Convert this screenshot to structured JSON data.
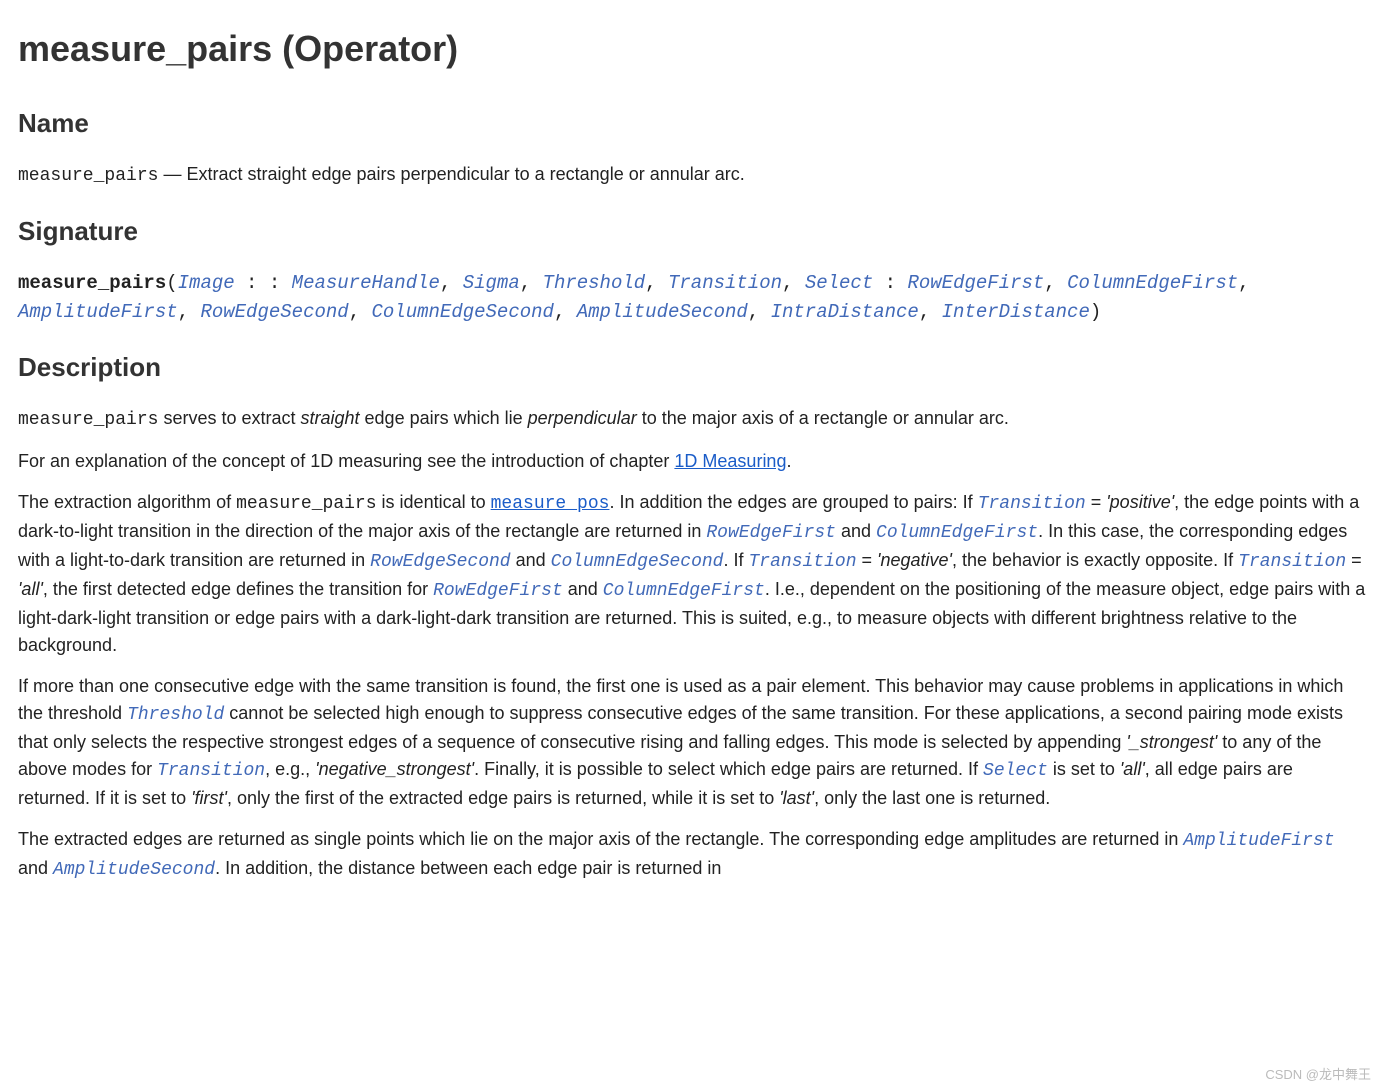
{
  "title": "measure_pairs (Operator)",
  "sections": {
    "name": "Name",
    "signature": "Signature",
    "description": "Description"
  },
  "name_line": {
    "op": "measure_pairs",
    "sep": " — ",
    "text": "Extract straight edge pairs perpendicular to a rectangle or annular arc."
  },
  "signature": {
    "op": "measure_pairs",
    "open": "(",
    "close": ")",
    "sep": ", ",
    "colon": " : ",
    "colon2": " : : ",
    "params": {
      "Image": "Image",
      "MeasureHandle": "MeasureHandle",
      "Sigma": "Sigma",
      "Threshold": "Threshold",
      "Transition": "Transition",
      "Select": "Select",
      "RowEdgeFirst": "RowEdgeFirst",
      "ColumnEdgeFirst": "ColumnEdgeFirst",
      "AmplitudeFirst": "AmplitudeFirst",
      "RowEdgeSecond": "RowEdgeSecond",
      "ColumnEdgeSecond": "ColumnEdgeSecond",
      "AmplitudeSecond": "AmplitudeSecond",
      "IntraDistance": "IntraDistance",
      "InterDistance": "InterDistance"
    }
  },
  "desc": {
    "p1": {
      "t1": " serves to extract ",
      "i1": "straight",
      "t2": " edge pairs which lie ",
      "i2": "perpendicular",
      "t3": " to the major axis of a rectangle or annular arc."
    },
    "p2": {
      "t1": "For an explanation of the concept of 1D measuring see the introduction of chapter ",
      "link": "1D Measuring",
      "t2": "."
    },
    "p3": {
      "t1": "The extraction algorithm of ",
      "mp": "measure_pairs",
      "t2": " is identical to ",
      "mpos": "measure_pos",
      "t3": ". In addition the edges are grouped to pairs: If ",
      "t4": " = ",
      "v_pos": "'positive'",
      "t5": ", the edge points with a dark-to-light transition in the direction of the major axis of the rectangle are returned in ",
      "t6": " and ",
      "t7": ". In this case, the corresponding edges with a light-to-dark transition are returned in ",
      "t8": " and ",
      "t9": ". If ",
      "t10": " = ",
      "v_neg": "'negative'",
      "t11": ", the behavior is exactly opposite. If ",
      "t12": " = ",
      "v_all": "'all'",
      "t13": ", the first detected edge defines the transition for ",
      "t14": " and ",
      "t15": ". I.e., dependent on the positioning of the measure object, edge pairs with a light-dark-light transition or edge pairs with a dark-light-dark transition are returned. This is suited, e.g., to measure objects with different brightness relative to the background."
    },
    "p4": {
      "t1": "If more than one consecutive edge with the same transition is found, the first one is used as a pair element. This behavior may cause problems in applications in which the threshold ",
      "t2": " cannot be selected high enough to suppress consecutive edges of the same transition. For these applications, a second pairing mode exists that only selects the respective strongest edges of a sequence of consecutive rising and falling edges. This mode is selected by appending ",
      "v_str": "'_strongest'",
      "t3": " to any of the above modes for ",
      "t4": ", e.g., ",
      "v_negstr": "'negative_strongest'",
      "t5": ". Finally, it is possible to select which edge pairs are returned. If ",
      "t6": " is set to ",
      "v_all": "'all'",
      "t7": ", all edge pairs are returned. If it is set to ",
      "v_first": "'first'",
      "t8": ", only the first of the extracted edge pairs is returned, while it is set to ",
      "v_last": "'last'",
      "t9": ", only the last one is returned."
    },
    "p5": {
      "t1": "The extracted edges are returned as single points which lie on the major axis of the rectangle. The corresponding edge amplitudes are returned in ",
      "t2": " and ",
      "t3": ". In addition, the distance between each edge pair is returned in "
    }
  },
  "watermark": "CSDN @龙中舞王"
}
